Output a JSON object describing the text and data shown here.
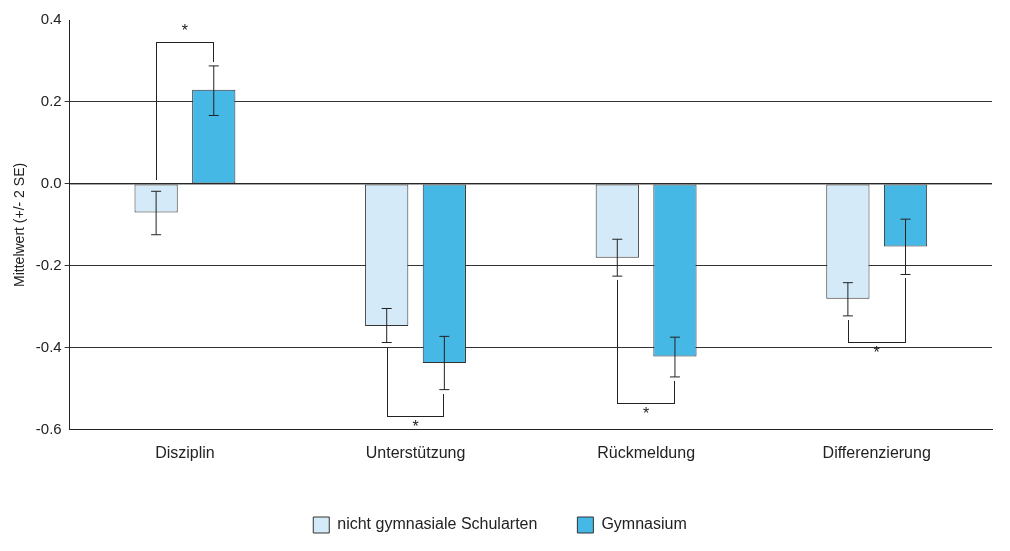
{
  "chart_data": {
    "type": "bar",
    "ylabel": "Mittelwert (+/- 2 SE)",
    "categories": [
      "Disziplin",
      "Unterstützung",
      "Rückmeldung",
      "Differenzierung"
    ],
    "series": [
      {
        "name": "nicht gymnasiale Schularten",
        "color": "#d4eaf8",
        "values": [
          -0.07,
          -0.347,
          -0.18,
          -0.28
        ],
        "errors": [
          [
            -0.124,
            -0.018
          ],
          [
            -0.387,
            -0.304
          ],
          [
            -0.225,
            -0.135
          ],
          [
            -0.322,
            -0.241
          ]
        ]
      },
      {
        "name": "Gymnasium",
        "color": "#45b8e6",
        "values": [
          0.23,
          -0.437,
          -0.421,
          -0.153
        ],
        "errors": [
          [
            0.167,
            0.288
          ],
          [
            -0.502,
            -0.372
          ],
          [
            -0.471,
            -0.374
          ],
          [
            -0.221,
            -0.086
          ]
        ]
      }
    ],
    "ylim": [
      -0.6,
      0.4
    ],
    "yticks": [
      {
        "value": -0.6,
        "label": "-0.6"
      },
      {
        "value": -0.4,
        "label": "-0.4"
      },
      {
        "value": -0.2,
        "label": "-0.2"
      },
      {
        "value": 0,
        "label": "0.0"
      },
      {
        "value": 0.2,
        "label": "0.2"
      },
      {
        "value": 0.4,
        "label": "0.4"
      }
    ],
    "grid": "y",
    "legend": "bottom",
    "annotations": [
      "*",
      "*",
      "*",
      "*"
    ]
  }
}
